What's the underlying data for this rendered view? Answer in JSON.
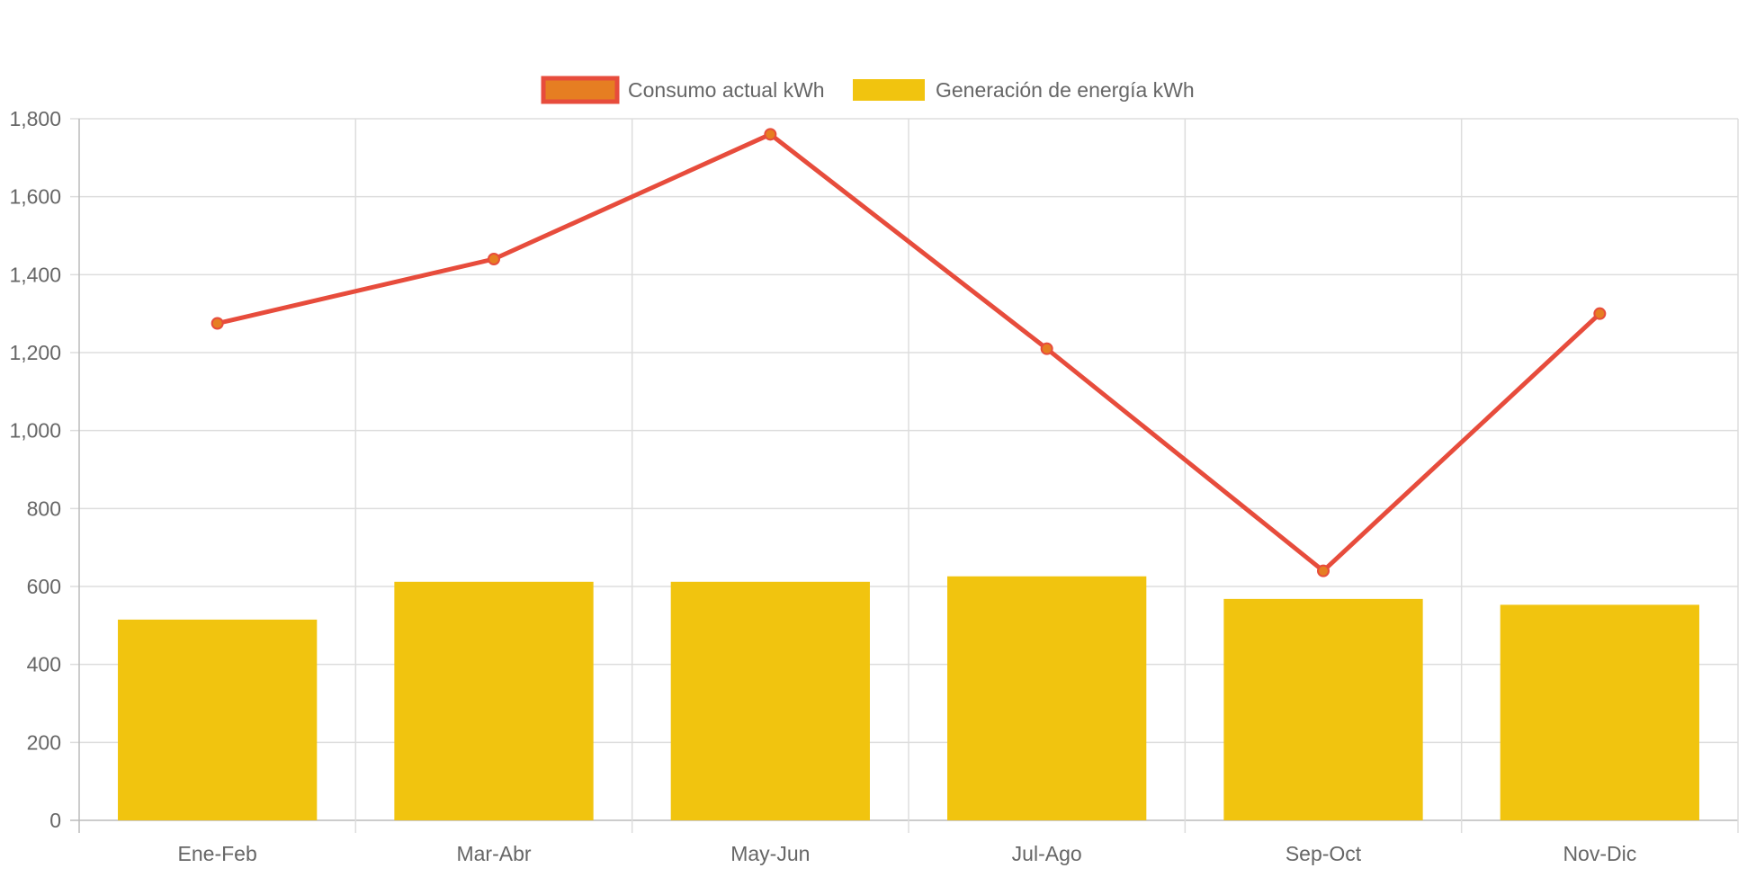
{
  "chart_data": {
    "type": "bar",
    "categories": [
      "Ene-Feb",
      "Mar-Abr",
      "May-Jun",
      "Jul-Ago",
      "Sep-Oct",
      "Nov-Dic"
    ],
    "series": [
      {
        "name": "Consumo actual kWh",
        "type": "line",
        "values": [
          1275,
          1440,
          1760,
          1210,
          640,
          1300
        ],
        "color": "#e74c3c",
        "point_color": "#e67e22"
      },
      {
        "name": "Generación de energía kWh",
        "type": "bar",
        "values": [
          515,
          612,
          612,
          626,
          568,
          553
        ],
        "color": "#f1c40f"
      }
    ],
    "ylim": [
      0,
      1800
    ],
    "yticks": [
      0,
      200,
      400,
      600,
      800,
      1000,
      1200,
      1400,
      1600,
      1800
    ],
    "ytick_labels": [
      "0",
      "200",
      "400",
      "600",
      "800",
      "1,000",
      "1,200",
      "1,400",
      "1,600",
      "1,800"
    ],
    "grid": true,
    "legend_position": "top-center",
    "title": "",
    "xlabel": "",
    "ylabel": ""
  }
}
